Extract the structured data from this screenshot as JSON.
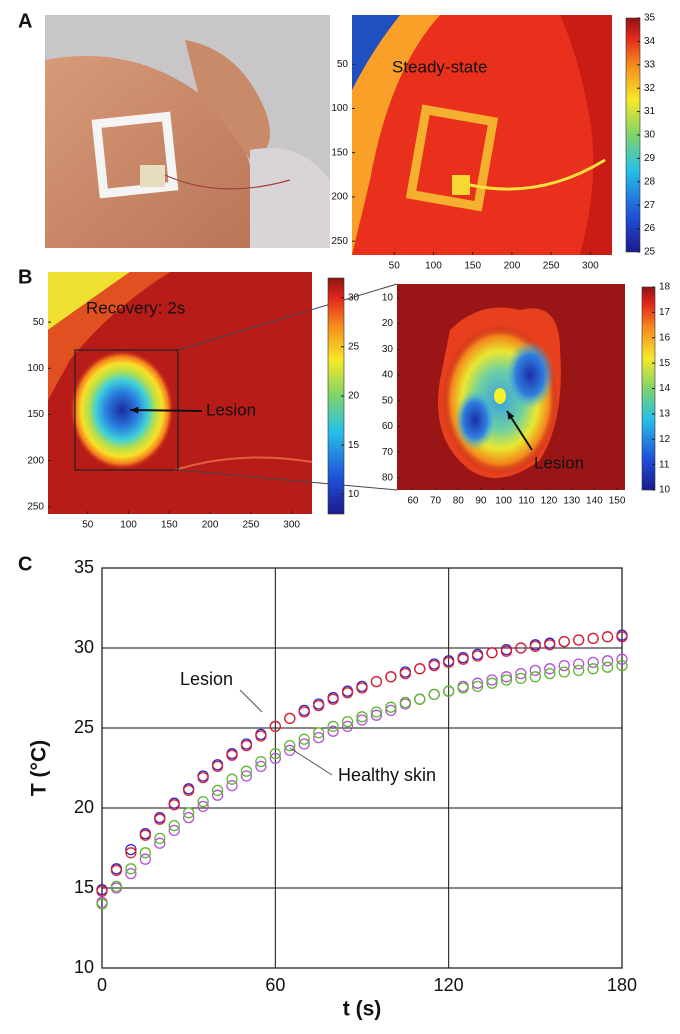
{
  "panel_labels": [
    "A",
    "B",
    "C"
  ],
  "chart_data": [
    {
      "type": "heatmap",
      "annotations": [
        "Steady-state"
      ],
      "xlim": [
        0,
        325
      ],
      "ylim": [
        0,
        260
      ],
      "xticks": [
        50,
        100,
        150,
        200,
        250,
        300
      ],
      "yticks": [
        50,
        100,
        150,
        200,
        250
      ],
      "colorbar": {
        "lim": [
          25,
          35
        ],
        "ticks": [
          25,
          26,
          27,
          28,
          29,
          30,
          31,
          32,
          33,
          34,
          35
        ]
      }
    },
    {
      "type": "heatmap",
      "annotations": [
        "Recovery: 2s",
        "Lesion"
      ],
      "xlim": [
        0,
        325
      ],
      "ylim": [
        0,
        260
      ],
      "xticks": [
        50,
        100,
        150,
        200,
        250,
        300
      ],
      "yticks": [
        50,
        100,
        150,
        200,
        250
      ],
      "colorbar": {
        "lim": [
          8,
          32
        ],
        "ticks": [
          10,
          15,
          20,
          25,
          30
        ]
      }
    },
    {
      "type": "heatmap",
      "annotations": [
        "Lesion"
      ],
      "xlim": [
        53,
        153.5
      ],
      "ylim": [
        4.6,
        84.7
      ],
      "xticks": [
        60,
        70,
        80,
        90,
        100,
        110,
        120,
        130,
        140,
        150
      ],
      "yticks": [
        10,
        20,
        30,
        40,
        50,
        60,
        70,
        80
      ],
      "colorbar": {
        "lim": [
          10,
          18
        ],
        "ticks": [
          10,
          11,
          12,
          13,
          14,
          15,
          16,
          17,
          18
        ]
      }
    },
    {
      "type": "scatter",
      "xlabel": "t (s)",
      "ylabel": "T (°C)",
      "annotations": [
        "Lesion",
        "Healthy skin"
      ],
      "xlim": [
        0,
        180
      ],
      "ylim": [
        10,
        35
      ],
      "xticks": [
        0,
        60,
        120,
        180
      ],
      "yticks": [
        10,
        15,
        20,
        25,
        30,
        35
      ],
      "grid": true,
      "x": [
        0,
        5,
        10,
        15,
        20,
        25,
        30,
        35,
        40,
        45,
        50,
        55,
        60,
        65,
        70,
        75,
        80,
        85,
        90,
        95,
        100,
        105,
        110,
        115,
        120,
        125,
        130,
        135,
        140,
        145,
        150,
        155,
        160,
        165,
        170,
        175,
        180
      ],
      "series": [
        {
          "color": "#2b2bd0",
          "values": [
            14.9,
            16.2,
            17.4,
            18.4,
            19.4,
            20.3,
            21.2,
            22.0,
            22.7,
            23.4,
            24.0,
            24.6,
            25.1,
            25.6,
            26.1,
            26.5,
            26.9,
            27.3,
            27.6,
            27.9,
            28.2,
            28.5,
            28.7,
            29.0,
            29.2,
            29.4,
            29.6,
            29.7,
            29.9,
            30.0,
            30.2,
            30.3,
            30.4,
            30.5,
            30.6,
            30.7,
            30.8
          ]
        },
        {
          "color": "#e8222a",
          "values": [
            14.8,
            16.1,
            17.2,
            18.3,
            19.3,
            20.2,
            21.1,
            21.9,
            22.6,
            23.3,
            23.9,
            24.5,
            25.1,
            25.6,
            26.0,
            26.4,
            26.8,
            27.2,
            27.5,
            27.9,
            28.2,
            28.4,
            28.7,
            28.9,
            29.1,
            29.3,
            29.5,
            29.7,
            29.8,
            30.0,
            30.1,
            30.2,
            30.4,
            30.5,
            30.6,
            30.7,
            30.7
          ]
        },
        {
          "color": "#b44fd6",
          "values": [
            14.1,
            15.0,
            15.9,
            16.8,
            17.8,
            18.6,
            19.4,
            20.1,
            20.8,
            21.4,
            22.0,
            22.6,
            23.1,
            23.6,
            24.0,
            24.4,
            24.8,
            25.1,
            25.5,
            25.8,
            26.1,
            26.5,
            26.8,
            27.1,
            27.3,
            27.6,
            27.8,
            28.0,
            28.2,
            28.4,
            28.6,
            28.7,
            28.9,
            29.0,
            29.1,
            29.2,
            29.3
          ]
        },
        {
          "color": "#5cb82e",
          "values": [
            14.0,
            15.1,
            16.2,
            17.2,
            18.1,
            18.9,
            19.7,
            20.4,
            21.1,
            21.8,
            22.3,
            22.9,
            23.4,
            23.9,
            24.3,
            24.7,
            25.1,
            25.4,
            25.7,
            26.0,
            26.3,
            26.6,
            26.8,
            27.1,
            27.3,
            27.5,
            27.6,
            27.8,
            28.0,
            28.1,
            28.2,
            28.4,
            28.5,
            28.6,
            28.7,
            28.8,
            28.9
          ]
        }
      ]
    }
  ]
}
